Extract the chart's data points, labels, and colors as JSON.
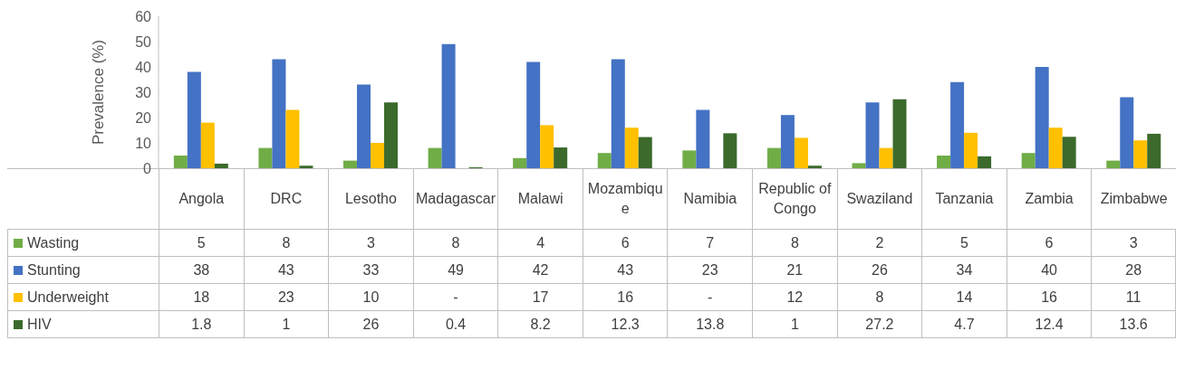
{
  "chart_data": {
    "type": "bar",
    "ylabel": "Prevalence (%)",
    "categories": [
      "Angola",
      "DRC",
      "Lesotho",
      "Madagascar",
      "Malawi",
      "Mozambique",
      "Namibia",
      "Republic of Congo",
      "Swaziland",
      "Tanzania",
      "Zambia",
      "Zimbabwe"
    ],
    "series": [
      {
        "name": "Wasting",
        "color": "#70ad47",
        "values": [
          5,
          8,
          3,
          8,
          4,
          6,
          7,
          8,
          2,
          5,
          6,
          3
        ],
        "value_labels": [
          "5",
          "8",
          "3",
          "8",
          "4",
          "6",
          "7",
          "8",
          "2",
          "5",
          "6",
          "3"
        ]
      },
      {
        "name": "Stunting",
        "color": "#4472c4",
        "values": [
          38,
          43,
          33,
          49,
          42,
          43,
          23,
          21,
          26,
          34,
          40,
          28
        ],
        "value_labels": [
          "38",
          "43",
          "33",
          "49",
          "42",
          "43",
          "23",
          "21",
          "26",
          "34",
          "40",
          "28"
        ]
      },
      {
        "name": "Underweight",
        "color": "#ffc000",
        "values": [
          18,
          23,
          10,
          null,
          17,
          16,
          null,
          12,
          8,
          14,
          16,
          11
        ],
        "value_labels": [
          "18",
          "23",
          "10",
          "-",
          "17",
          "16",
          "-",
          "12",
          "8",
          "14",
          "16",
          "11"
        ]
      },
      {
        "name": "HIV",
        "color": "#3b6a2c",
        "values": [
          1.8,
          1,
          26,
          0.4,
          8.2,
          12.3,
          13.8,
          1,
          27.2,
          4.7,
          12.4,
          13.6
        ],
        "value_labels": [
          "1.8",
          "1",
          "26",
          "0.4",
          "8.2",
          "12.3",
          "13.8",
          "1",
          "27.2",
          "4.7",
          "12.4",
          "13.6"
        ]
      }
    ],
    "ylim": [
      0,
      60
    ],
    "yticks": [
      0,
      10,
      20,
      30,
      40,
      50,
      60
    ],
    "legend": "bottom"
  }
}
